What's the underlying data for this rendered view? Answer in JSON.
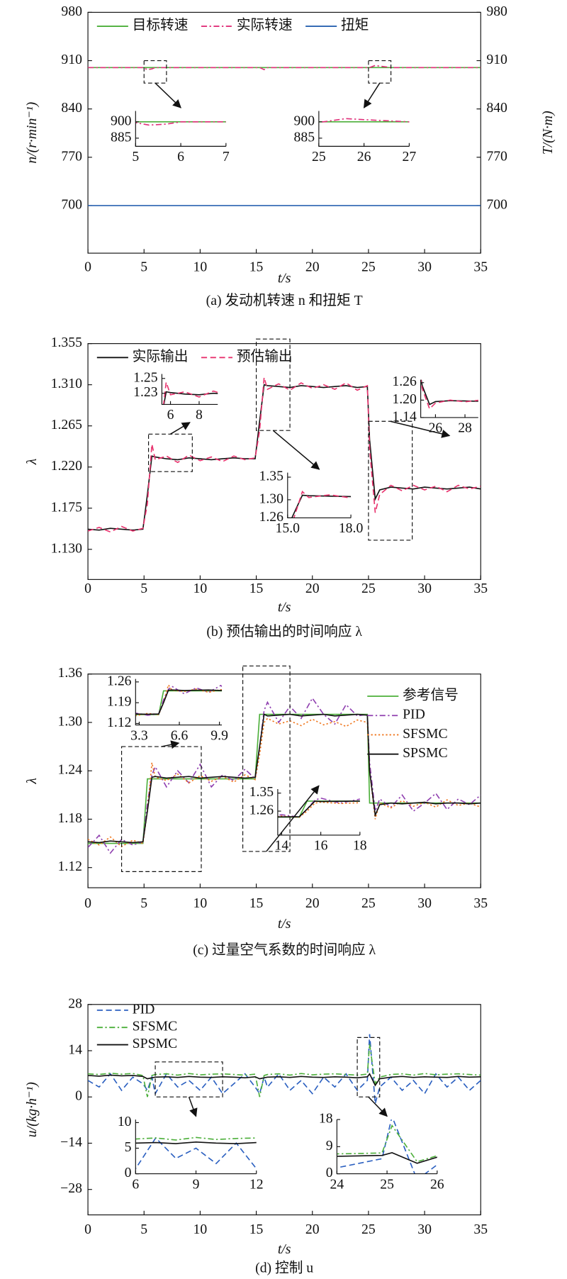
{
  "chart_data": [
    {
      "type": "line",
      "title": "(a) 发动机转速 n 和扭矩 T",
      "xlabel": "t/s",
      "ylabel": "n/(r·min⁻¹)",
      "y2label": "T/(N·m)",
      "xlim": [
        0,
        35
      ],
      "xticks": [
        0,
        5,
        10,
        15,
        20,
        25,
        30,
        35
      ],
      "ylim": [
        631,
        980
      ],
      "yticks": [
        700,
        770,
        840,
        910,
        980
      ],
      "y2lim": [
        631,
        980
      ],
      "y2ticks": [
        700,
        770,
        840,
        910,
        980
      ],
      "legend": "top",
      "x": [
        0,
        1,
        2,
        3,
        4,
        4.9,
        5.3,
        5.7,
        6,
        7,
        8,
        9,
        10,
        11,
        12,
        13,
        14,
        14.9,
        15.3,
        15.7,
        16,
        17,
        18,
        19,
        20,
        21,
        22,
        23,
        24,
        24.9,
        25.1,
        25.6,
        26,
        27,
        28,
        29,
        30,
        31,
        32,
        33,
        34,
        35
      ],
      "series": [
        {
          "name": "目标转速",
          "color": "#4caf3a",
          "style": "solid",
          "values": [
            900,
            900,
            900,
            900,
            900,
            900,
            900,
            900,
            900,
            900,
            900,
            900,
            900,
            900,
            900,
            900,
            900,
            900,
            900,
            900,
            900,
            900,
            900,
            900,
            900,
            900,
            900,
            900,
            900,
            900,
            900,
            900,
            900,
            900,
            900,
            900,
            900,
            900,
            900,
            900,
            900,
            900
          ]
        },
        {
          "name": "实际转速",
          "color": "#e0307a",
          "style": "dashdot",
          "values": [
            900,
            900,
            900,
            900,
            900,
            900,
            897,
            898,
            900,
            900,
            900,
            900,
            900,
            900,
            900,
            900,
            900,
            900,
            900,
            897,
            900,
            900,
            900,
            900,
            900,
            900,
            900,
            900,
            900,
            900,
            900,
            903,
            902,
            900,
            900,
            900,
            900,
            900,
            900,
            900,
            900,
            900
          ]
        },
        {
          "name": "扭矩",
          "color": "#2a62b0",
          "style": "solid",
          "axis": "y2",
          "values": [
            700,
            700,
            700,
            700,
            700,
            700,
            700,
            700,
            700,
            700,
            700,
            700,
            700,
            700,
            700,
            700,
            700,
            700,
            700,
            700,
            700,
            700,
            700,
            700,
            700,
            700,
            700,
            700,
            700,
            700,
            700,
            700,
            700,
            700,
            700,
            700,
            700,
            700,
            700,
            700,
            700,
            700
          ]
        }
      ],
      "insets": [
        {
          "xlim": [
            5,
            7
          ],
          "xticks": [
            5,
            6,
            7
          ],
          "ylim": [
            877.5,
            910
          ],
          "yticks": [
            900,
            885
          ]
        },
        {
          "xlim": [
            25,
            27
          ],
          "xticks": [
            25,
            26,
            27
          ],
          "ylim": [
            877.5,
            910
          ],
          "yticks": [
            900,
            885
          ]
        }
      ]
    },
    {
      "type": "line",
      "title": "(b) 预估输出的时间响应 λ",
      "xlabel": "t/s",
      "ylabel": "λ",
      "xlim": [
        0,
        35
      ],
      "xticks": [
        0,
        5,
        10,
        15,
        20,
        25,
        30,
        35
      ],
      "ylim": [
        1.097,
        1.355
      ],
      "yticks": [
        {
          "value": 1.13,
          "label": "1.130"
        },
        1.175,
        {
          "value": 1.22,
          "label": "1.220"
        },
        1.265,
        {
          "value": 1.31,
          "label": "1.310"
        },
        1.355
      ],
      "legend": "top",
      "x": [
        0,
        1,
        2,
        3,
        4,
        4.9,
        5.3,
        5.7,
        6,
        7,
        8,
        9,
        10,
        11,
        12,
        13,
        14,
        14.9,
        15.3,
        15.7,
        16,
        17,
        18,
        19,
        20,
        21,
        22,
        23,
        24,
        24.9,
        25.1,
        25.6,
        26,
        27,
        28,
        29,
        30,
        31,
        32,
        33,
        34,
        35
      ],
      "series": [
        {
          "name": "实际输出",
          "color": "#111111",
          "style": "solid",
          "values": [
            1.152,
            1.151,
            1.153,
            1.152,
            1.151,
            1.152,
            1.19,
            1.232,
            1.231,
            1.229,
            1.228,
            1.23,
            1.229,
            1.228,
            1.229,
            1.23,
            1.229,
            1.229,
            1.27,
            1.31,
            1.309,
            1.308,
            1.307,
            1.309,
            1.308,
            1.307,
            1.308,
            1.309,
            1.307,
            1.308,
            1.25,
            1.185,
            1.195,
            1.198,
            1.197,
            1.196,
            1.198,
            1.197,
            1.196,
            1.197,
            1.198,
            1.196
          ]
        },
        {
          "name": "预估输出",
          "color": "#e8336e",
          "style": "dashed",
          "values": [
            1.15,
            1.154,
            1.149,
            1.155,
            1.15,
            1.153,
            1.18,
            1.245,
            1.228,
            1.232,
            1.225,
            1.233,
            1.227,
            1.231,
            1.226,
            1.232,
            1.228,
            1.23,
            1.26,
            1.318,
            1.305,
            1.311,
            1.304,
            1.312,
            1.306,
            1.31,
            1.305,
            1.312,
            1.304,
            1.309,
            1.24,
            1.17,
            1.19,
            1.2,
            1.194,
            1.2,
            1.195,
            1.199,
            1.193,
            1.2,
            1.196,
            1.199
          ]
        }
      ],
      "insets": [
        {
          "xlim": [
            5.4,
            9.3
          ],
          "xticks": [
            6,
            8
          ],
          "ylim": [
            1.215,
            1.256
          ],
          "yticks": [
            1.25,
            1.23
          ]
        },
        {
          "xlim": [
            15,
            18
          ],
          "xticks": [
            {
              "value": 15,
              "label": "15.0"
            },
            {
              "value": 18,
              "label": "18.0"
            }
          ],
          "ylim": [
            1.26,
            1.36
          ],
          "yticks": [
            1.35,
            {
              "value": 1.3,
              "label": "1.30"
            },
            1.26
          ]
        },
        {
          "xlim": [
            25,
            28.9
          ],
          "xticks": [
            26,
            28
          ],
          "ylim": [
            1.14,
            1.27
          ],
          "yticks": [
            1.26,
            {
              "value": 1.2,
              "label": "1.20"
            },
            1.14
          ]
        }
      ]
    },
    {
      "type": "line",
      "title": "(c) 过量空气系数的时间响应 λ",
      "xlabel": "t/s",
      "ylabel": "λ",
      "xlim": [
        0,
        35
      ],
      "xticks": [
        0,
        5,
        10,
        15,
        20,
        25,
        30,
        35
      ],
      "ylim": [
        1.095,
        1.36
      ],
      "yticks": [
        1.12,
        1.18,
        1.24,
        {
          "value": 1.3,
          "label": "1.30"
        },
        1.36
      ],
      "legend": "right",
      "x": [
        0,
        1,
        2,
        3,
        4,
        4.9,
        5.3,
        5.7,
        6,
        7,
        8,
        9,
        10,
        11,
        12,
        13,
        14,
        14.9,
        15.3,
        15.7,
        16,
        17,
        18,
        19,
        20,
        21,
        22,
        23,
        24,
        24.9,
        25.1,
        25.6,
        26,
        27,
        28,
        29,
        30,
        31,
        32,
        33,
        34,
        35
      ],
      "series": [
        {
          "name": "参考信号",
          "color": "#4caf3a",
          "style": "solid",
          "values": [
            1.15,
            1.15,
            1.15,
            1.15,
            1.15,
            1.15,
            1.23,
            1.23,
            1.23,
            1.23,
            1.23,
            1.23,
            1.23,
            1.23,
            1.23,
            1.23,
            1.23,
            1.23,
            1.31,
            1.31,
            1.31,
            1.31,
            1.31,
            1.31,
            1.31,
            1.31,
            1.31,
            1.31,
            1.31,
            1.31,
            1.2,
            1.2,
            1.2,
            1.2,
            1.2,
            1.2,
            1.2,
            1.2,
            1.2,
            1.2,
            1.2,
            1.2
          ]
        },
        {
          "name": "PID",
          "color": "#9040b0",
          "style": "dashdot",
          "values": [
            1.145,
            1.16,
            1.138,
            1.155,
            1.148,
            1.152,
            1.2,
            1.235,
            1.245,
            1.22,
            1.24,
            1.225,
            1.248,
            1.22,
            1.235,
            1.228,
            1.242,
            1.23,
            1.27,
            1.315,
            1.325,
            1.3,
            1.32,
            1.305,
            1.33,
            1.31,
            1.298,
            1.322,
            1.308,
            1.31,
            1.25,
            1.19,
            1.205,
            1.195,
            1.21,
            1.19,
            1.2,
            1.212,
            1.192,
            1.205,
            1.198,
            1.21
          ]
        },
        {
          "name": "SFSMC",
          "color": "#f07820",
          "style": "dotted",
          "values": [
            1.155,
            1.148,
            1.158,
            1.146,
            1.154,
            1.15,
            1.19,
            1.25,
            1.232,
            1.228,
            1.236,
            1.225,
            1.234,
            1.227,
            1.233,
            1.226,
            1.235,
            1.229,
            1.26,
            1.3,
            1.305,
            1.298,
            1.302,
            1.296,
            1.304,
            1.297,
            1.301,
            1.295,
            1.303,
            1.3,
            1.24,
            1.18,
            1.2,
            1.194,
            1.203,
            1.196,
            1.201,
            1.195,
            1.204,
            1.197,
            1.2,
            1.195
          ]
        },
        {
          "name": "SPSMC",
          "color": "#111111",
          "style": "solid",
          "values": [
            1.152,
            1.151,
            1.153,
            1.152,
            1.151,
            1.152,
            1.19,
            1.232,
            1.233,
            1.231,
            1.232,
            1.233,
            1.231,
            1.232,
            1.233,
            1.232,
            1.231,
            1.232,
            1.27,
            1.31,
            1.308,
            1.309,
            1.31,
            1.308,
            1.309,
            1.31,
            1.308,
            1.309,
            1.31,
            1.309,
            1.24,
            1.185,
            1.198,
            1.2,
            1.199,
            1.2,
            1.201,
            1.199,
            1.2,
            1.2,
            1.199,
            1.2
          ]
        }
      ],
      "insets": [
        {
          "xlim": [
            3,
            10.1
          ],
          "xticks": [
            3.3,
            6.6,
            9.9
          ],
          "ylim": [
            1.115,
            1.27
          ],
          "yticks": [
            1.26,
            1.19,
            1.12
          ]
        },
        {
          "xlim": [
            13.8,
            18
          ],
          "xticks": [
            14,
            16,
            18
          ],
          "ylim": [
            1.14,
            1.37
          ],
          "yticks": [
            1.35,
            1.26
          ]
        }
      ]
    },
    {
      "type": "line",
      "title": "(d) 控制 u",
      "xlabel": "t/s",
      "ylabel": "u/(kg·h⁻¹)",
      "xlim": [
        0,
        35
      ],
      "xticks": [
        0,
        5,
        10,
        15,
        20,
        25,
        30,
        35
      ],
      "ylim": [
        -35.7,
        28
      ],
      "yticks": [
        {
          "value": -28,
          "label": "−28"
        },
        {
          "value": -14,
          "label": "−14"
        },
        0,
        14,
        28
      ],
      "legend": "upper left",
      "x": [
        0,
        1,
        2,
        3,
        4,
        4.9,
        5.3,
        5.7,
        6,
        7,
        8,
        9,
        10,
        11,
        12,
        13,
        14,
        14.9,
        15.3,
        15.7,
        16,
        17,
        18,
        19,
        20,
        21,
        22,
        23,
        24,
        24.9,
        25.1,
        25.6,
        26,
        27,
        28,
        29,
        30,
        31,
        32,
        33,
        34,
        35
      ],
      "series": [
        {
          "name": "PID",
          "color": "#2a5fc0",
          "style": "dashed",
          "values": [
            5,
            3,
            7,
            2,
            6,
            4,
            2,
            6,
            1,
            7,
            3,
            5,
            2,
            6,
            1,
            4,
            7,
            3,
            1,
            6,
            3,
            7,
            2,
            5,
            1,
            6,
            3,
            7,
            2,
            5,
            19,
            -2,
            3,
            6,
            2,
            5,
            1,
            7,
            3,
            6,
            2,
            5
          ]
        },
        {
          "name": "SFSMC",
          "color": "#4caf3a",
          "style": "dashdot",
          "values": [
            7,
            6.8,
            7.2,
            6.9,
            7.1,
            6.5,
            0,
            6.5,
            6.8,
            7,
            6.6,
            7.1,
            6.7,
            6.9,
            7,
            6.8,
            6.6,
            6.9,
            0,
            6.5,
            6.8,
            7,
            6.6,
            7.1,
            6.7,
            6.9,
            7,
            6.8,
            6.6,
            6.9,
            16,
            4,
            6,
            6.8,
            7,
            6.6,
            7.1,
            6.7,
            6.9,
            7,
            6.8,
            6.6
          ]
        },
        {
          "name": "SPSMC",
          "color": "#111111",
          "style": "solid",
          "values": [
            6.5,
            6.3,
            6.6,
            6.4,
            6.5,
            6.2,
            5.5,
            5.8,
            6,
            6.1,
            5.9,
            6.2,
            6,
            5.9,
            6.1,
            6,
            5.8,
            6.1,
            5.5,
            5.8,
            6,
            6.1,
            5.9,
            6.2,
            6,
            5.9,
            6.1,
            6,
            5.8,
            6.1,
            7,
            3.5,
            5.5,
            6,
            6.2,
            5.9,
            6.1,
            6,
            5.9,
            6.2,
            6,
            6.1
          ]
        }
      ],
      "insets": [
        {
          "xlim": [
            6,
            12
          ],
          "xticks": [
            6,
            9,
            12
          ],
          "ylim": [
            0,
            10.6
          ],
          "yticks": [
            10,
            5,
            0
          ]
        },
        {
          "xlim": [
            24,
            26
          ],
          "xticks": [
            24,
            25,
            26
          ],
          "ylim": [
            0,
            18
          ],
          "yticks": [
            18,
            9,
            0
          ]
        }
      ]
    }
  ]
}
